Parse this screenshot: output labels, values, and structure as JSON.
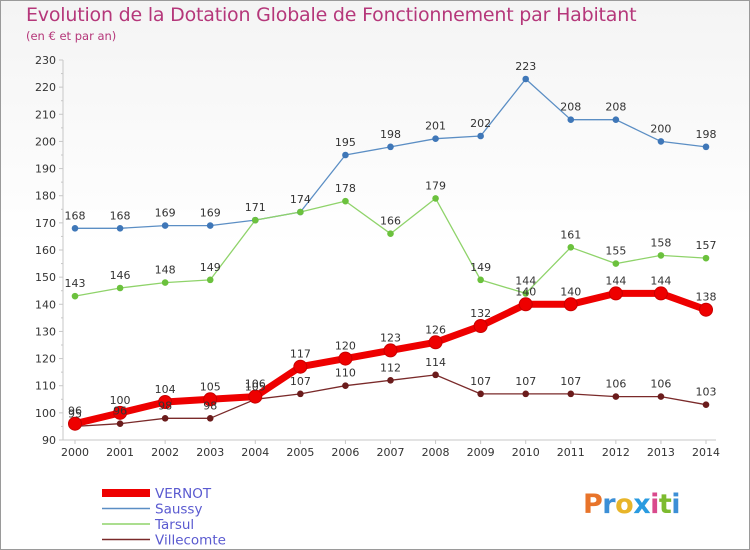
{
  "header": {
    "title": "Evolution de la Dotation Globale de Fonctionnement par Habitant",
    "subtitle": "(en € et par an)"
  },
  "logo": {
    "letters": [
      "P",
      "r",
      "o",
      "x",
      "i",
      "t",
      "i"
    ],
    "colors": [
      "#e8742a",
      "#3c8fd6",
      "#e8b52a",
      "#2a9be0",
      "#d94a8c",
      "#7dbb2f",
      "#3c8fd6"
    ]
  },
  "chart_data": {
    "type": "line",
    "x": [
      "2000",
      "2001",
      "2002",
      "2003",
      "2004",
      "2005",
      "2006",
      "2007",
      "2008",
      "2009",
      "2010",
      "2011",
      "2012",
      "2013",
      "2014"
    ],
    "ylim": [
      90,
      230
    ],
    "yticks": [
      90,
      100,
      110,
      120,
      130,
      140,
      150,
      160,
      170,
      180,
      190,
      200,
      210,
      220,
      230
    ],
    "grid": false,
    "legend_position": "bottom-left",
    "series": [
      {
        "name": "Saussy",
        "color": "#5b8ec4",
        "point": "#3f77b8",
        "values": [
          168,
          168,
          169,
          169,
          171,
          174,
          195,
          198,
          201,
          202,
          223,
          208,
          208,
          200,
          198
        ],
        "labels": [
          "168",
          "168",
          "169",
          "169",
          "171",
          "174",
          "195",
          "198",
          "201",
          "202",
          "223",
          "208",
          "208",
          "200",
          "198"
        ]
      },
      {
        "name": "Tarsul",
        "color": "#8fd36a",
        "point": "#6bc13d",
        "values": [
          143,
          146,
          148,
          149,
          171,
          174,
          178,
          166,
          179,
          149,
          144,
          161,
          155,
          158,
          157
        ],
        "labels": [
          "143",
          "146",
          "148",
          "149",
          "",
          "",
          "178",
          "166",
          "179",
          "149",
          "144",
          "161",
          "155",
          "158",
          "157"
        ]
      },
      {
        "name": "Villecomte",
        "color": "#7a2a2a",
        "point": "#6b1c1c",
        "values": [
          95,
          96,
          98,
          98,
          105,
          107,
          110,
          112,
          114,
          107,
          107,
          107,
          106,
          106,
          103
        ],
        "labels": [
          "95",
          "96",
          "98",
          "98",
          "105",
          "107",
          "110",
          "112",
          "114",
          "107",
          "107",
          "107",
          "106",
          "106",
          "103"
        ]
      },
      {
        "name": "VERNOT",
        "color": "#ee0000",
        "point": "#ee0000",
        "values": [
          96,
          100,
          104,
          105,
          106,
          117,
          120,
          123,
          126,
          132,
          140,
          140,
          144,
          144,
          138
        ],
        "labels": [
          "96",
          "100",
          "104",
          "105",
          "106",
          "117",
          "120",
          "123",
          "126",
          "132",
          "140",
          "140",
          "144",
          "144",
          "138"
        ]
      }
    ]
  }
}
